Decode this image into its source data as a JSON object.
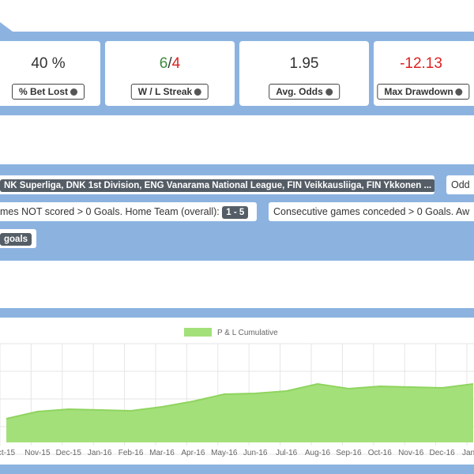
{
  "stats": [
    {
      "value": "40 %",
      "label": "% Bet Lost"
    },
    {
      "streak": {
        "wins": "6",
        "separator": "/",
        "losses": "4"
      },
      "label": "W / L Streak"
    },
    {
      "value": "1.95",
      "label": "Avg. Odds"
    },
    {
      "value": "-12.13",
      "label": "Max Drawdown"
    }
  ],
  "filters": [
    {
      "badge": "NK Superliga, DNK 1st Division, ENG Vanarama National League, FIN Veikkausliiga, FIN Ykkonen ..."
    },
    {
      "text": "Odd"
    },
    {
      "text": "mes NOT scored > 0 Goals. Home Team (overall):",
      "badge": "1 - 5"
    },
    {
      "text": "Consecutive games conceded > 0 Goals. Aw"
    },
    {
      "badge": "goals"
    }
  ],
  "chart_data": {
    "type": "area",
    "legend": "P & L Cumulative",
    "color": "#a3e07a",
    "line_color": "#8fd45f",
    "categories": [
      "ct-15",
      "Nov-15",
      "Dec-15",
      "Jan-16",
      "Feb-16",
      "Mar-16",
      "Apr-16",
      "May-16",
      "Jun-16",
      "Jul-16",
      "Aug-16",
      "Sep-16",
      "Oct-16",
      "Nov-16",
      "Dec-16",
      "Jan"
    ],
    "values": [
      3.0,
      3.9,
      4.2,
      4.1,
      4.0,
      4.5,
      5.2,
      6.1,
      6.2,
      6.5,
      7.4,
      6.8,
      7.1,
      7.0,
      6.9,
      7.4
    ],
    "ylim": [
      0,
      12.5
    ],
    "grid": true
  }
}
